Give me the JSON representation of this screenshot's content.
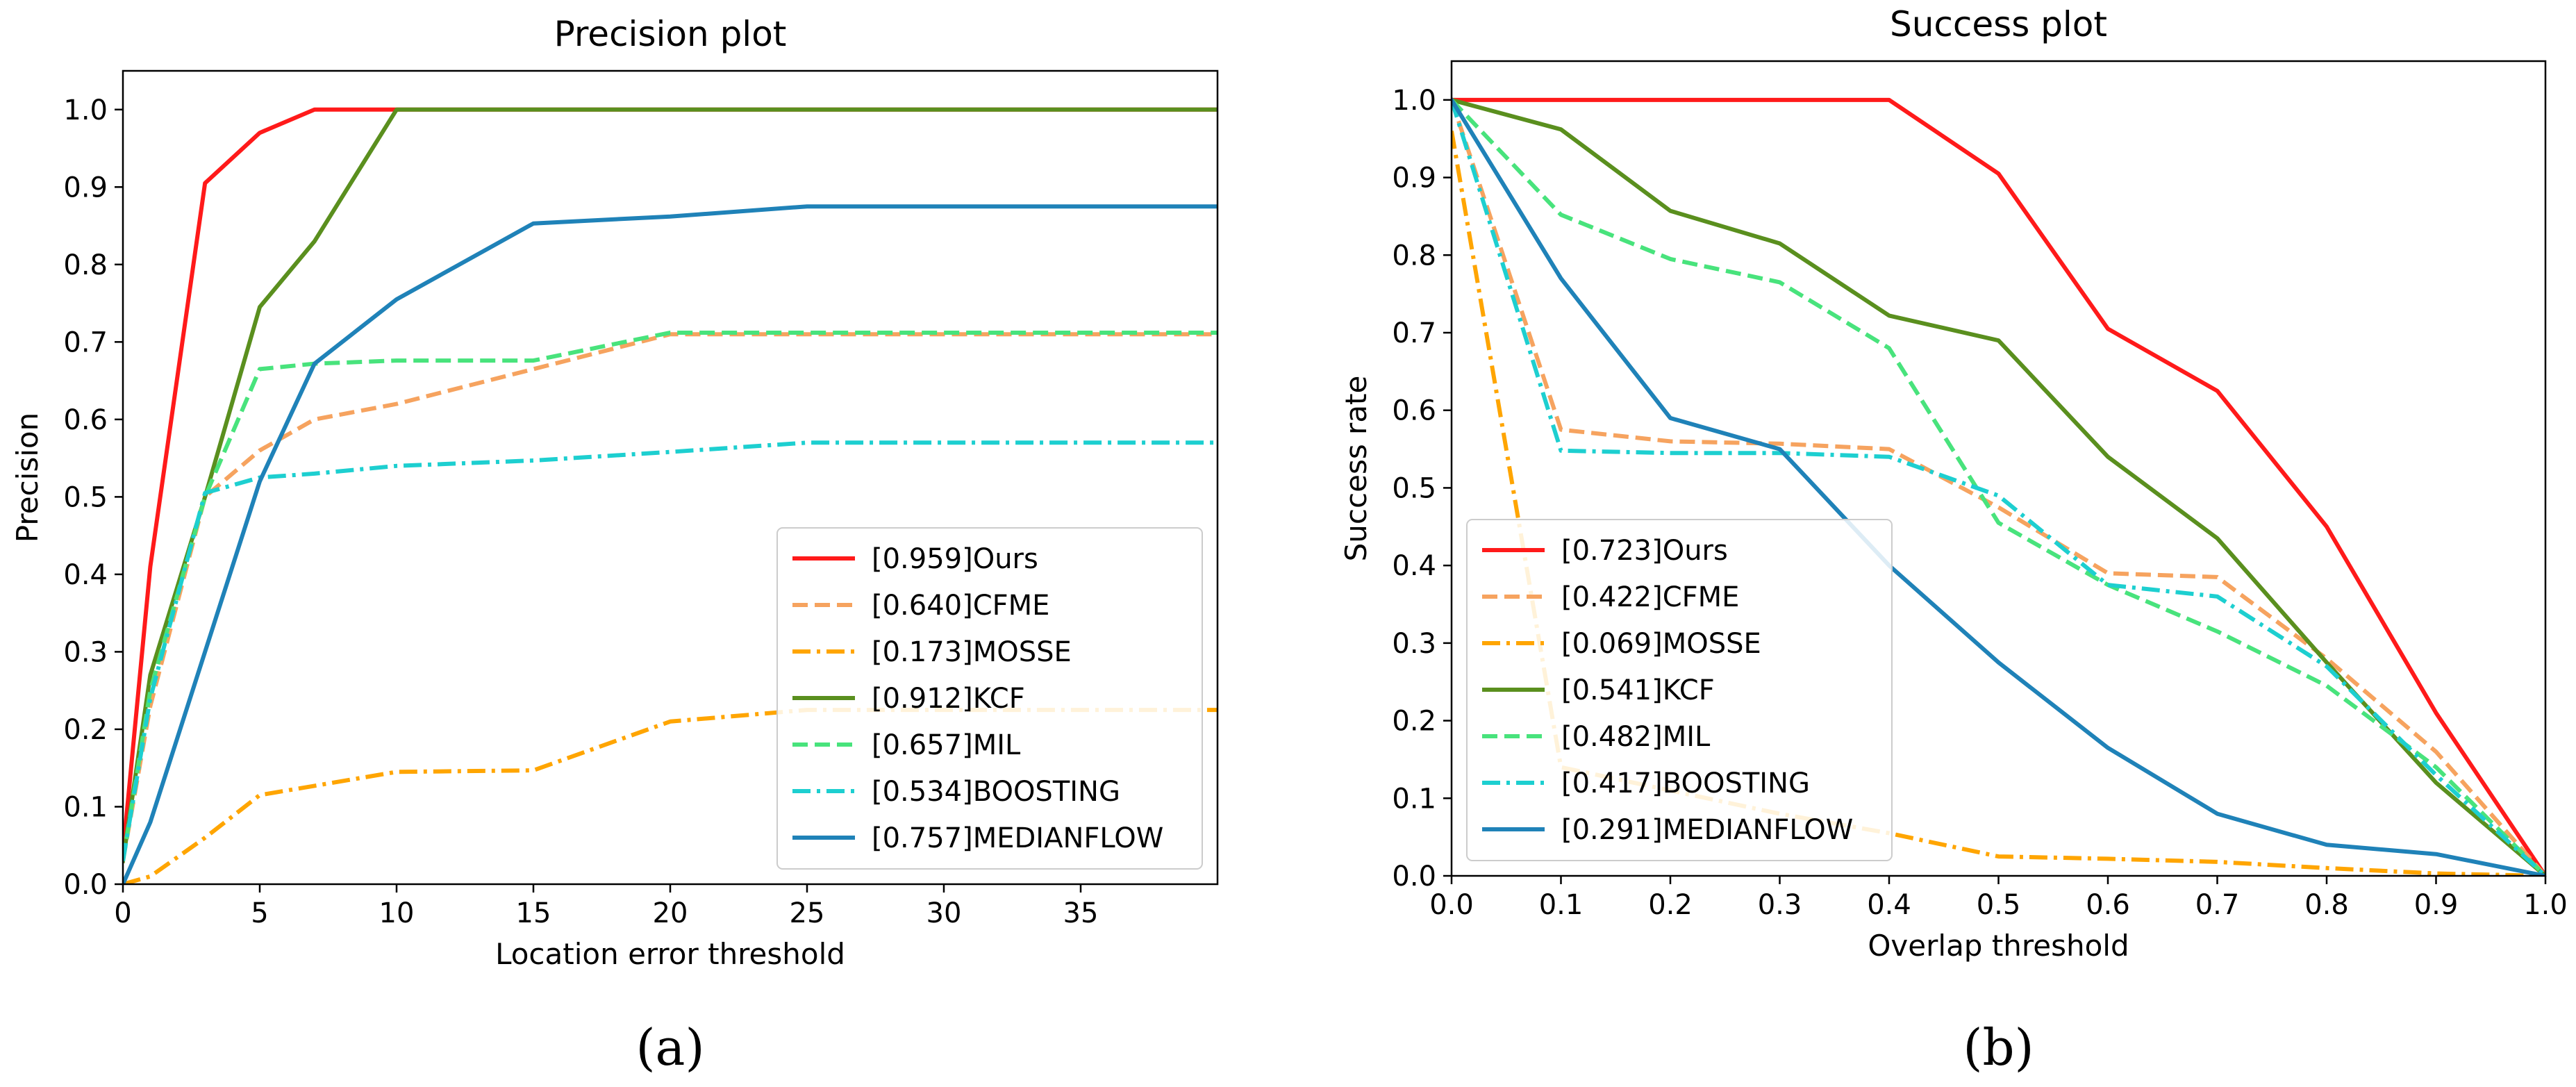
{
  "colors": {
    "Ours": "#ff1a1a",
    "CFME": "#f6a35f",
    "MOSSE": "#ffa500",
    "KCF": "#5a8f1e",
    "MIL": "#48e37c",
    "BOOSTING": "#1dcfd0",
    "MEDIANFLOW": "#1f82b8"
  },
  "chart_data": [
    {
      "type": "line",
      "title": "Precision plot",
      "xlabel": "Location error threshold",
      "ylabel": "Precision",
      "subfigure_label": "(a)",
      "xlim": [
        0,
        40
      ],
      "ylim": [
        0,
        1.05
      ],
      "xticks": [
        0,
        5,
        10,
        15,
        20,
        25,
        30,
        35
      ],
      "yticks": [
        0.0,
        0.1,
        0.2,
        0.3,
        0.4,
        0.5,
        0.6,
        0.7,
        0.8,
        0.9,
        1.0
      ],
      "tick_decimals_x": 0,
      "legend_position": "lower-right",
      "series": [
        {
          "name": "[0.959]Ours",
          "key": "Ours",
          "style": "solid",
          "x": [
            0,
            1,
            3,
            5,
            7,
            10,
            15,
            20,
            25,
            30,
            40
          ],
          "y": [
            0.04,
            0.41,
            0.905,
            0.97,
            1.0,
            1.0,
            1.0,
            1.0,
            1.0,
            1.0,
            1.0
          ]
        },
        {
          "name": "[0.640]CFME",
          "key": "CFME",
          "style": "dashed",
          "x": [
            0,
            1,
            3,
            5,
            7,
            10,
            15,
            20,
            25,
            30,
            40
          ],
          "y": [
            0.03,
            0.23,
            0.5,
            0.56,
            0.6,
            0.62,
            0.665,
            0.71,
            0.71,
            0.71,
            0.71
          ]
        },
        {
          "name": "[0.173]MOSSE",
          "key": "MOSSE",
          "style": "dashdot",
          "x": [
            0,
            1,
            3,
            5,
            7,
            10,
            15,
            20,
            25,
            30,
            40
          ],
          "y": [
            0.0,
            0.01,
            0.06,
            0.115,
            0.127,
            0.145,
            0.147,
            0.21,
            0.225,
            0.225,
            0.225
          ]
        },
        {
          "name": "[0.912]KCF",
          "key": "KCF",
          "style": "solid",
          "x": [
            0,
            1,
            3,
            5,
            7,
            10,
            15,
            20,
            25,
            30,
            40
          ],
          "y": [
            0.03,
            0.27,
            0.5,
            0.745,
            0.83,
            1.0,
            1.0,
            1.0,
            1.0,
            1.0,
            1.0
          ]
        },
        {
          "name": "[0.657]MIL",
          "key": "MIL",
          "style": "dashed",
          "x": [
            0,
            1,
            3,
            5,
            7,
            10,
            15,
            20,
            25,
            30,
            40
          ],
          "y": [
            0.03,
            0.25,
            0.5,
            0.665,
            0.672,
            0.676,
            0.676,
            0.712,
            0.712,
            0.712,
            0.712
          ]
        },
        {
          "name": "[0.534]BOOSTING",
          "key": "BOOSTING",
          "style": "dashdot",
          "x": [
            0,
            1,
            3,
            5,
            7,
            10,
            15,
            20,
            25,
            30,
            40
          ],
          "y": [
            0.03,
            0.24,
            0.505,
            0.525,
            0.53,
            0.54,
            0.547,
            0.558,
            0.57,
            0.57,
            0.57
          ]
        },
        {
          "name": "[0.757]MEDIANFLOW",
          "key": "MEDIANFLOW",
          "style": "solid",
          "x": [
            0,
            1,
            3,
            5,
            7,
            10,
            15,
            20,
            25,
            30,
            40
          ],
          "y": [
            0.0,
            0.08,
            0.3,
            0.52,
            0.672,
            0.755,
            0.853,
            0.862,
            0.875,
            0.875,
            0.875
          ]
        }
      ]
    },
    {
      "type": "line",
      "title": "Success plot",
      "xlabel": "Overlap threshold",
      "ylabel": "Success rate",
      "subfigure_label": "(b)",
      "xlim": [
        0,
        1
      ],
      "ylim": [
        0,
        1.05
      ],
      "xticks": [
        0.0,
        0.1,
        0.2,
        0.3,
        0.4,
        0.5,
        0.6,
        0.7,
        0.8,
        0.9,
        1.0
      ],
      "yticks": [
        0.0,
        0.1,
        0.2,
        0.3,
        0.4,
        0.5,
        0.6,
        0.7,
        0.8,
        0.9,
        1.0
      ],
      "tick_decimals_x": 1,
      "legend_position": "lower-left",
      "series": [
        {
          "name": "[0.723]Ours",
          "key": "Ours",
          "style": "solid",
          "x": [
            0,
            0.1,
            0.2,
            0.3,
            0.4,
            0.5,
            0.6,
            0.7,
            0.8,
            0.9,
            1.0
          ],
          "y": [
            1.0,
            1.0,
            1.0,
            1.0,
            1.0,
            0.905,
            0.705,
            0.625,
            0.45,
            0.21,
            0.0
          ]
        },
        {
          "name": "[0.422]CFME",
          "key": "CFME",
          "style": "dashed",
          "x": [
            0,
            0.1,
            0.2,
            0.3,
            0.4,
            0.5,
            0.6,
            0.7,
            0.8,
            0.9,
            1.0
          ],
          "y": [
            1.0,
            0.575,
            0.56,
            0.557,
            0.55,
            0.475,
            0.39,
            0.385,
            0.28,
            0.16,
            0.0
          ]
        },
        {
          "name": "[0.069]MOSSE",
          "key": "MOSSE",
          "style": "dashdot",
          "x": [
            0,
            0.1,
            0.2,
            0.3,
            0.4,
            0.5,
            0.6,
            0.7,
            0.8,
            0.9,
            1.0
          ],
          "y": [
            0.96,
            0.14,
            0.11,
            0.08,
            0.055,
            0.025,
            0.022,
            0.018,
            0.01,
            0.003,
            0.0
          ]
        },
        {
          "name": "[0.541]KCF",
          "key": "KCF",
          "style": "solid",
          "x": [
            0,
            0.1,
            0.2,
            0.3,
            0.4,
            0.5,
            0.6,
            0.7,
            0.8,
            0.9,
            1.0
          ],
          "y": [
            1.0,
            0.962,
            0.857,
            0.815,
            0.722,
            0.69,
            0.54,
            0.435,
            0.275,
            0.12,
            0.0
          ]
        },
        {
          "name": "[0.482]MIL",
          "key": "MIL",
          "style": "dashed",
          "x": [
            0,
            0.1,
            0.2,
            0.3,
            0.4,
            0.5,
            0.6,
            0.7,
            0.8,
            0.9,
            1.0
          ],
          "y": [
            1.0,
            0.852,
            0.795,
            0.765,
            0.68,
            0.455,
            0.375,
            0.315,
            0.245,
            0.14,
            0.0
          ]
        },
        {
          "name": "[0.417]BOOSTING",
          "key": "BOOSTING",
          "style": "dashdot",
          "x": [
            0,
            0.1,
            0.2,
            0.3,
            0.4,
            0.5,
            0.6,
            0.7,
            0.8,
            0.9,
            1.0
          ],
          "y": [
            1.0,
            0.548,
            0.545,
            0.545,
            0.54,
            0.49,
            0.375,
            0.36,
            0.27,
            0.13,
            0.0
          ]
        },
        {
          "name": "[0.291]MEDIANFLOW",
          "key": "MEDIANFLOW",
          "style": "solid",
          "x": [
            0,
            0.1,
            0.2,
            0.3,
            0.4,
            0.5,
            0.6,
            0.7,
            0.8,
            0.9,
            1.0
          ],
          "y": [
            1.0,
            0.77,
            0.59,
            0.55,
            0.4,
            0.275,
            0.165,
            0.08,
            0.04,
            0.028,
            0.0
          ]
        }
      ]
    }
  ]
}
